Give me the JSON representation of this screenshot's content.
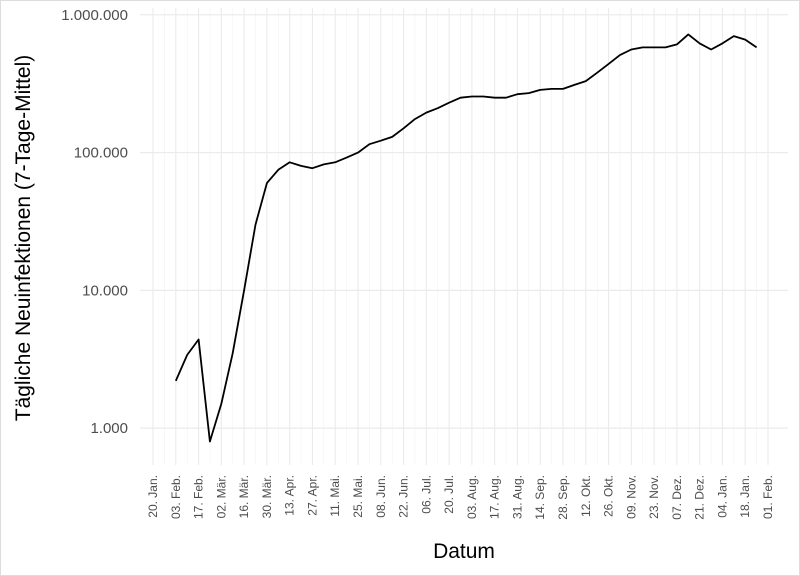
{
  "chart_data": {
    "type": "line",
    "x_label": "Datum",
    "y_label": "Tägliche Neuinfektionen (7-Tage-Mittel)",
    "categories": [
      "20. Jan.",
      null,
      "03. Feb.",
      null,
      "17. Feb.",
      null,
      "02. Mär.",
      null,
      "16. Mär.",
      null,
      "30. Mär.",
      null,
      "13. Apr.",
      null,
      "27. Apr.",
      null,
      "11. Mai.",
      null,
      "25. Mai.",
      null,
      "08. Jun.",
      null,
      "22. Jun.",
      null,
      "06. Jul.",
      null,
      "20. Jul.",
      null,
      "03. Aug.",
      null,
      "17. Aug.",
      null,
      "31. Aug.",
      null,
      "14. Sep.",
      null,
      "28. Sep.",
      null,
      "12. Okt.",
      null,
      "26. Okt.",
      null,
      "09. Nov.",
      null,
      "23. Nov.",
      null,
      "07. Dez.",
      null,
      "21. Dez.",
      null,
      "04. Jan.",
      null,
      "18. Jan.",
      null,
      "01. Feb."
    ],
    "values": [
      null,
      null,
      2200,
      3400,
      4400,
      800,
      1500,
      3500,
      10000,
      30000,
      60000,
      75000,
      85000,
      80000,
      77000,
      82000,
      85000,
      92000,
      100000,
      115000,
      122000,
      130000,
      150000,
      175000,
      195000,
      210000,
      230000,
      250000,
      255000,
      255000,
      250000,
      250000,
      265000,
      270000,
      285000,
      290000,
      290000,
      310000,
      330000,
      380000,
      440000,
      510000,
      560000,
      580000,
      580000,
      580000,
      610000,
      720000,
      620000,
      560000,
      620000,
      700000,
      660000,
      580000,
      null
    ],
    "color": "#000000",
    "log_y": true,
    "grid": true,
    "ylim": [
      540,
      1120000
    ],
    "yticks": [
      {
        "value": 1000,
        "label": "1.000"
      },
      {
        "value": 10000,
        "label": "10.000"
      },
      {
        "value": 100000,
        "label": "100.000"
      },
      {
        "value": 1000000,
        "label": "1.000.000"
      }
    ]
  }
}
